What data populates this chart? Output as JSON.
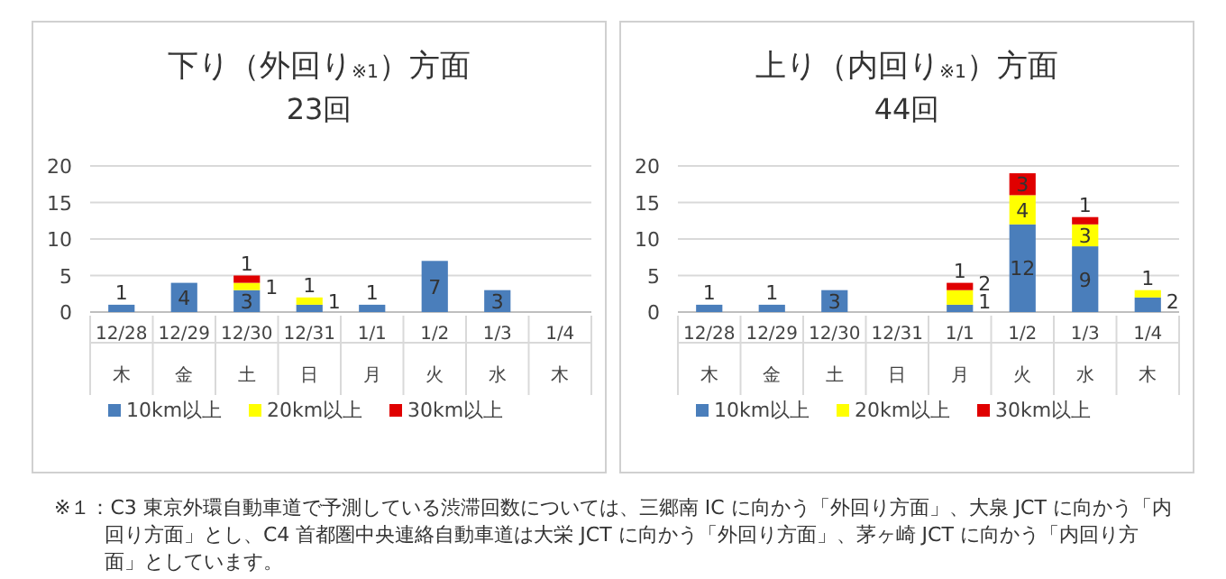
{
  "chart_data": [
    {
      "type": "bar",
      "title": "下り（外回り$_{※1}$）方面",
      "subtitle": "23回",
      "categories": [
        "12/28\n木",
        "12/29\n金",
        "12/30\n土",
        "12/31\n日",
        "1/1\n月",
        "1/2\n火",
        "1/3\n水",
        "1/4\n木"
      ],
      "stacked": true,
      "ylim": [
        0,
        20
      ],
      "yticks": [
        0,
        5,
        10,
        15,
        20
      ],
      "grid": "y",
      "legend": "bottom",
      "data_labels": true,
      "series": [
        {
          "name": "10km以上",
          "color": "#4a7ebb",
          "values": [
            1,
            4,
            3,
            1,
            1,
            7,
            3,
            null
          ]
        },
        {
          "name": "20km以上",
          "color": "#ffff00",
          "values": [
            null,
            null,
            1,
            1,
            null,
            null,
            null,
            null
          ]
        },
        {
          "name": "30km以上",
          "color": "#e00000",
          "values": [
            null,
            null,
            1,
            null,
            null,
            null,
            null,
            null
          ]
        }
      ]
    },
    {
      "type": "bar",
      "title": "上り（内回り$_{※1}$）方面",
      "subtitle": "44回",
      "categories": [
        "12/28\n木",
        "12/29\n金",
        "12/30\n土",
        "12/31\n日",
        "1/1\n月",
        "1/2\n火",
        "1/3\n水",
        "1/4\n木"
      ],
      "stacked": true,
      "ylim": [
        0,
        20
      ],
      "yticks": [
        0,
        5,
        10,
        15,
        20
      ],
      "grid": "y",
      "legend": "bottom",
      "data_labels": true,
      "annotations": [
        "※１：C3 東京外環自動車道で予測している渋滞回数については、三郷南 IC に向かう「外回り方面」、大泉 JCT に向かう「内回り方面」とし、C4 首都圏中央連絡自動車道は大栄 JCT に向かう「外回り方面」、茅ヶ崎 JCT に向かう「内回り方面」としています。"
      ],
      "series": [
        {
          "name": "10km以上",
          "color": "#4a7ebb",
          "values": [
            1,
            1,
            3,
            null,
            1,
            12,
            9,
            2
          ]
        },
        {
          "name": "20km以上",
          "color": "#ffff00",
          "values": [
            null,
            null,
            null,
            null,
            2,
            4,
            3,
            1
          ]
        },
        {
          "name": "30km以上",
          "color": "#e00000",
          "values": [
            null,
            null,
            null,
            null,
            1,
            3,
            1,
            null
          ]
        }
      ]
    }
  ]
}
